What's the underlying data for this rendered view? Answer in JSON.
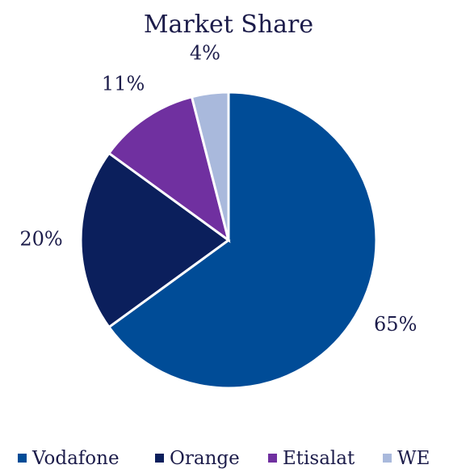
{
  "chart_data": {
    "type": "pie",
    "title": "Market Share",
    "categories": [
      "Vodafone",
      "Orange",
      "Etisalat",
      "WE"
    ],
    "values": [
      65,
      20,
      11,
      4
    ],
    "value_labels": [
      "65%",
      "20%",
      "11%",
      "4%"
    ],
    "colors": [
      "#004c97",
      "#0b1f5c",
      "#7030a0",
      "#a9b9dc"
    ],
    "legend": "bottom"
  }
}
